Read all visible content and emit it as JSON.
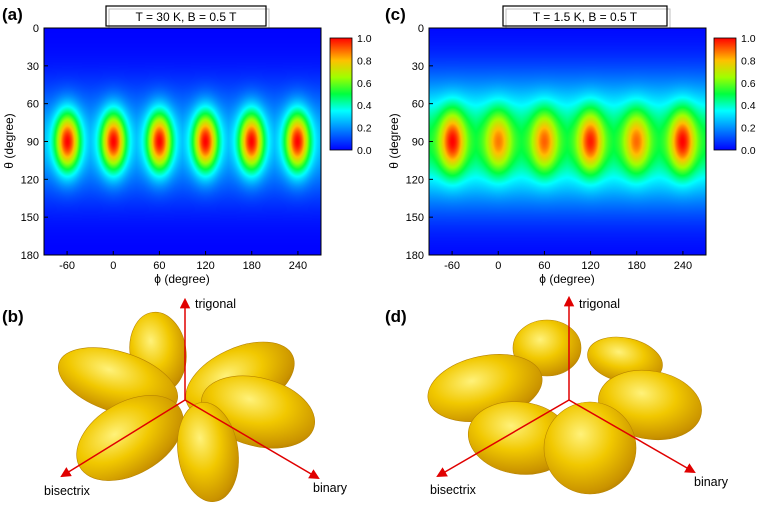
{
  "figure": {
    "panel_labels": [
      "(a)",
      "(b)",
      "(c)",
      "(d)"
    ],
    "colors": {
      "low": "#0000ff",
      "mid": "#00ff40",
      "high": "#ff0000",
      "lobes": "#e8b400",
      "arrow": "#e00000"
    }
  },
  "chart_data": [
    {
      "id": "a",
      "type": "heatmap",
      "title": "T = 30 K, B = 0.5 T",
      "xlabel": "ϕ (degree)",
      "ylabel": "θ (degree)",
      "xlim": [
        -90,
        270
      ],
      "ylim": [
        180,
        0
      ],
      "xticks": [
        "-60",
        "0",
        "60",
        "120",
        "180",
        "240"
      ],
      "xtick_values": [
        -60,
        0,
        60,
        120,
        180,
        240
      ],
      "yticks": [
        "0",
        "30",
        "60",
        "90",
        "120",
        "150",
        "180"
      ],
      "ytick_values": [
        0,
        30,
        60,
        90,
        120,
        150,
        180
      ],
      "colorbar": {
        "min": 0.0,
        "max": 1.0,
        "ticks": [
          "0.0",
          "0.2",
          "0.4",
          "0.6",
          "0.8",
          "1.0"
        ]
      },
      "peaks": [
        {
          "phi": -60,
          "theta": 90,
          "value": 1.0
        },
        {
          "phi": 0,
          "theta": 90,
          "value": 1.0
        },
        {
          "phi": 60,
          "theta": 90,
          "value": 1.0
        },
        {
          "phi": 120,
          "theta": 90,
          "value": 1.0
        },
        {
          "phi": 180,
          "theta": 90,
          "value": 1.0
        },
        {
          "phi": 240,
          "theta": 90,
          "value": 1.0
        }
      ],
      "band": {
        "theta_center": 90,
        "theta_halfwidth": 55,
        "floor_value": 0.25
      }
    },
    {
      "id": "c",
      "type": "heatmap",
      "title": "T = 1.5 K, B = 0.5 T",
      "xlabel": "ϕ (degree)",
      "ylabel": "θ (degree)",
      "xlim": [
        -90,
        270
      ],
      "ylim": [
        180,
        0
      ],
      "xticks": [
        "-60",
        "0",
        "60",
        "120",
        "180",
        "240"
      ],
      "xtick_values": [
        -60,
        0,
        60,
        120,
        180,
        240
      ],
      "yticks": [
        "0",
        "30",
        "60",
        "90",
        "120",
        "150",
        "180"
      ],
      "ytick_values": [
        0,
        30,
        60,
        90,
        120,
        150,
        180
      ],
      "colorbar": {
        "min": 0.0,
        "max": 1.0,
        "ticks": [
          "0.0",
          "0.2",
          "0.4",
          "0.6",
          "0.8",
          "1.0"
        ]
      },
      "peaks": [
        {
          "phi": -60,
          "theta": 90,
          "value": 1.0
        },
        {
          "phi": 0,
          "theta": 90,
          "value": 0.75
        },
        {
          "phi": 60,
          "theta": 90,
          "value": 0.8
        },
        {
          "phi": 120,
          "theta": 90,
          "value": 0.95
        },
        {
          "phi": 180,
          "theta": 90,
          "value": 0.78
        },
        {
          "phi": 240,
          "theta": 90,
          "value": 1.0
        }
      ],
      "band": {
        "theta_center": 90,
        "theta_halfwidth": 60,
        "floor_value": 0.5
      }
    }
  ],
  "panel_b": {
    "axes": {
      "up": "trigonal",
      "left": "bisectrix",
      "right": "binary"
    },
    "lobe_count": 6
  },
  "panel_d": {
    "axes": {
      "up": "trigonal",
      "left": "bisectrix",
      "right": "binary"
    },
    "lobe_count": 6
  }
}
